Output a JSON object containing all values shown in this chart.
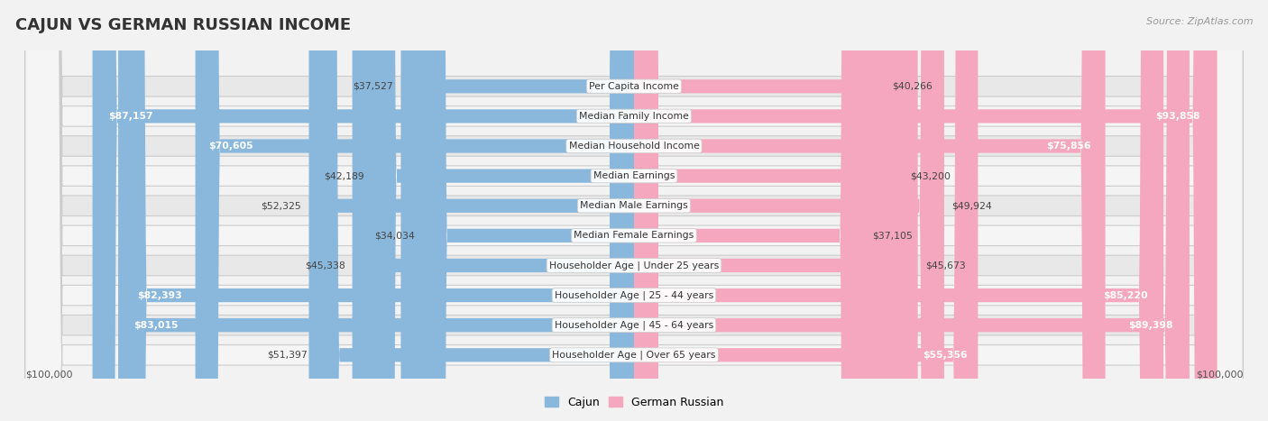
{
  "title": "CAJUN VS GERMAN RUSSIAN INCOME",
  "source": "Source: ZipAtlas.com",
  "categories": [
    "Per Capita Income",
    "Median Family Income",
    "Median Household Income",
    "Median Earnings",
    "Median Male Earnings",
    "Median Female Earnings",
    "Householder Age | Under 25 years",
    "Householder Age | 25 - 44 years",
    "Householder Age | 45 - 64 years",
    "Householder Age | Over 65 years"
  ],
  "cajun_values": [
    37527,
    87157,
    70605,
    42189,
    52325,
    34034,
    45338,
    82393,
    83015,
    51397
  ],
  "german_russian_values": [
    40266,
    93858,
    75856,
    43200,
    49924,
    37105,
    45673,
    85220,
    89398,
    55356
  ],
  "max_value": 100000,
  "cajun_color": "#89b8dc",
  "cajun_color_dark": "#5a9ac7",
  "german_russian_color": "#f4a7be",
  "german_russian_color_dark": "#e8538a",
  "bg_color": "#f2f2f2",
  "row_bg_even": "#e8e8e8",
  "row_bg_odd": "#f5f5f5",
  "xlabel_left": "$100,000",
  "xlabel_right": "$100,000",
  "legend_cajun": "Cajun",
  "legend_german": "German Russian",
  "white_label_threshold": 55000
}
